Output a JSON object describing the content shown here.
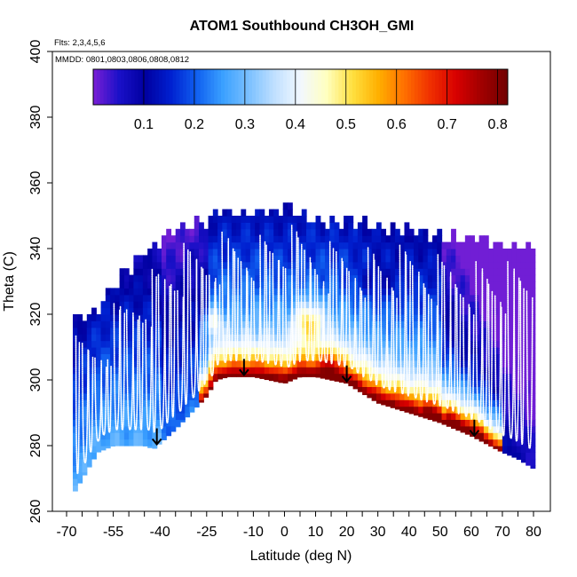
{
  "chart_data": {
    "type": "heatmap",
    "title": "ATOM1 Southbound CH3OH_GMI",
    "subtitle_flights": "Flts: 2,3,4,5,6",
    "subtitle_dates": "MMDD: 0801,0803,0806,0808,0812",
    "xlabel": "Latitude (deg N)",
    "ylabel": "Theta (C)",
    "xlim": [
      -70,
      80
    ],
    "ylim": [
      260,
      400
    ],
    "x_ticks": [
      -70,
      -65,
      -60,
      -55,
      -50,
      -45,
      -40,
      -35,
      -30,
      -25,
      -20,
      -15,
      -10,
      -5,
      0,
      5,
      10,
      15,
      20,
      25,
      30,
      35,
      40,
      45,
      50,
      55,
      60,
      65,
      70,
      75,
      80
    ],
    "x_tick_labels": [
      "-70",
      "-55",
      "-40",
      "-25",
      "-10",
      "0",
      "10",
      "20",
      "30",
      "40",
      "50",
      "60",
      "70",
      "80"
    ],
    "x_label_values": [
      -70,
      -55,
      -40,
      -25,
      -10,
      0,
      10,
      20,
      30,
      40,
      50,
      60,
      70,
      80
    ],
    "y_tick_labels": [
      "260",
      "280",
      "300",
      "320",
      "340",
      "360",
      "380",
      "400"
    ],
    "y_label_values": [
      260,
      280,
      300,
      320,
      340,
      360,
      380,
      400
    ],
    "colorbar": {
      "range": [
        0,
        0.82
      ],
      "tick_labels": [
        "0.1",
        "0.2",
        "0.3",
        "0.4",
        "0.5",
        "0.6",
        "0.7",
        "0.8"
      ],
      "tick_values": [
        0.1,
        0.2,
        0.3,
        0.4,
        0.5,
        0.6,
        0.7,
        0.8
      ],
      "colors": [
        "#7a1fd6",
        "#1a10c8",
        "#0000a0",
        "#0020d0",
        "#1060f0",
        "#3aa0ff",
        "#7ac0ff",
        "#c0e0ff",
        "#f2f8ff",
        "#ffffc0",
        "#ffe040",
        "#ffb000",
        "#ff7000",
        "#f03000",
        "#d80000",
        "#a00000",
        "#700000"
      ]
    },
    "field_profile": {
      "lat_nodes": [
        -68,
        -60,
        -55,
        -45,
        -42,
        -35,
        -25,
        -22,
        -18,
        -13,
        -10,
        -5,
        0,
        5,
        10,
        15,
        20,
        25,
        30,
        40,
        50,
        55,
        60,
        62,
        70,
        75,
        80
      ],
      "floor": [
        265,
        278,
        280,
        280,
        279,
        285,
        295,
        300,
        301,
        301,
        301,
        300,
        299,
        301,
        301,
        300,
        299,
        296,
        293,
        290,
        287,
        285,
        283,
        282,
        278,
        276,
        273
      ],
      "ceiling": [
        317,
        320,
        328,
        338,
        340,
        345,
        347,
        350,
        350,
        350,
        350,
        350,
        352,
        350,
        348,
        347,
        347,
        347,
        345,
        345,
        343,
        342,
        342,
        342,
        340,
        340,
        340
      ]
    },
    "flight_arrows_lat": [
      -41,
      -13,
      20,
      61
    ]
  }
}
